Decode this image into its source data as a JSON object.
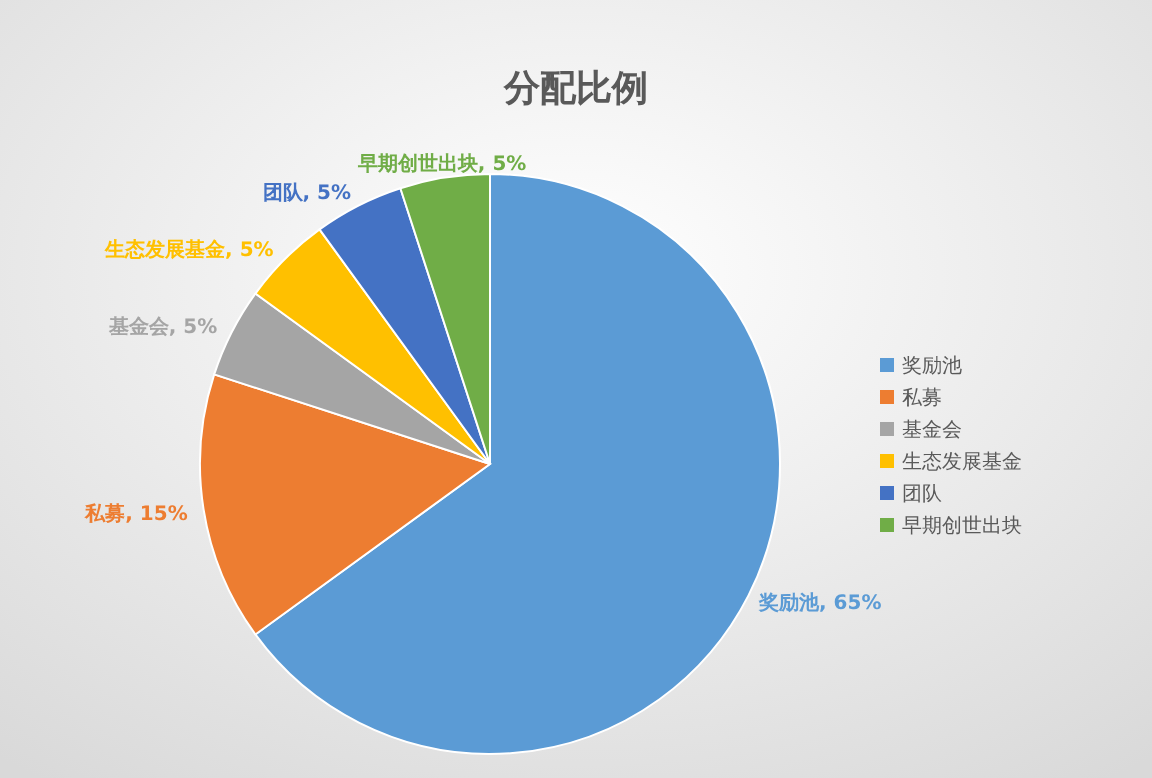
{
  "chart_data": {
    "type": "pie",
    "title": "分配比例",
    "categories": [
      "奖励池",
      "私募",
      "基金会",
      "生态发展基金",
      "团队",
      "早期创世出块"
    ],
    "values": [
      65,
      15,
      5,
      5,
      5,
      5
    ],
    "colors": [
      "#5b9bd5",
      "#ed7d31",
      "#a5a5a5",
      "#ffc000",
      "#4472c4",
      "#70ad47"
    ],
    "value_labels": [
      "奖励池, 65%",
      "私募, 15%",
      "基金会, 5%",
      "生态发展基金, 5%",
      "团队, 5%",
      "早期创世出块, 5%"
    ],
    "legend": "right"
  }
}
